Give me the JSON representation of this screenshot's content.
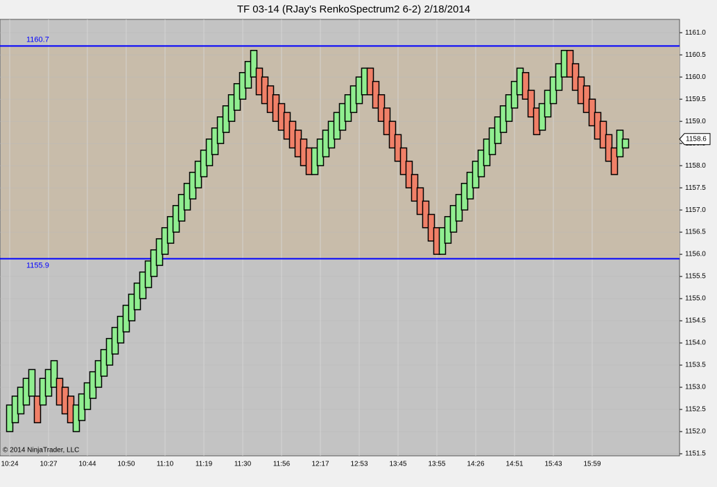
{
  "chart_data": {
    "type": "renko",
    "title": "TF 03-14 (RJay's RenkoSpectrum2  6-2)  2/18/2014",
    "copyright": "© 2014 NinjaTrader, LLC",
    "categories": [
      "10:24",
      null,
      null,
      null,
      null,
      null,
      null,
      "10:27",
      null,
      null,
      null,
      null,
      null,
      null,
      "10:44",
      null,
      null,
      null,
      null,
      null,
      null,
      "10:50",
      null,
      null,
      null,
      null,
      null,
      null,
      "11:10",
      null,
      null,
      null,
      null,
      null,
      null,
      "11:19",
      null,
      null,
      null,
      null,
      null,
      null,
      "11:30",
      null,
      null,
      null,
      null,
      null,
      null,
      "11:56",
      null,
      null,
      null,
      null,
      null,
      null,
      "12:17",
      null,
      null,
      null,
      null,
      null,
      null,
      "12:53",
      null,
      null,
      null,
      null,
      null,
      null,
      "13:45",
      null,
      null,
      null,
      null,
      null,
      null,
      "13:55",
      null,
      null,
      null,
      null,
      null,
      null,
      "14:26",
      null,
      null,
      null,
      null,
      null,
      null,
      "14:51",
      null,
      null,
      null,
      null,
      null,
      null,
      "15:43",
      null,
      null,
      null,
      null,
      null,
      null,
      "15:59",
      null,
      null,
      null,
      null,
      null,
      null
    ],
    "open": [
      1152.0,
      1152.2,
      1152.4,
      1152.6,
      1152.8,
      1152.8,
      1152.6,
      1152.8,
      1153.0,
      1153.2,
      1153.0,
      1152.8,
      1152.0,
      1152.25,
      1152.5,
      1152.75,
      1153.0,
      1153.25,
      1153.5,
      1153.75,
      1154.0,
      1154.25,
      1154.5,
      1154.75,
      1155.0,
      1155.25,
      1155.5,
      1155.75,
      1156.0,
      1156.25,
      1156.5,
      1156.75,
      1157.0,
      1157.25,
      1157.5,
      1157.75,
      1158.0,
      1158.25,
      1158.5,
      1158.75,
      1159.0,
      1159.25,
      1159.5,
      1159.75,
      1160.0,
      1160.2,
      1160.0,
      1159.8,
      1159.6,
      1159.4,
      1159.2,
      1159.0,
      1158.8,
      1158.6,
      1158.4,
      1157.8,
      1158.0,
      1158.2,
      1158.4,
      1158.6,
      1158.8,
      1159.0,
      1159.2,
      1159.4,
      1159.6,
      1160.2,
      1159.9,
      1159.6,
      1159.3,
      1159.0,
      1158.7,
      1158.4,
      1158.1,
      1157.8,
      1157.5,
      1157.2,
      1156.9,
      1156.6,
      1156.0,
      1156.25,
      1156.5,
      1156.75,
      1157.0,
      1157.25,
      1157.5,
      1157.75,
      1158.0,
      1158.25,
      1158.5,
      1158.75,
      1159.0,
      1159.3,
      1159.6,
      1160.1,
      1159.7,
      1159.3,
      1158.8,
      1159.1,
      1159.4,
      1159.7,
      1160.0,
      1160.6,
      1160.3,
      1160.0,
      1159.8,
      1159.5,
      1159.2,
      1159.0,
      1158.7,
      1158.4,
      1158.2,
      1158.4
    ],
    "close": [
      1152.6,
      1152.8,
      1153.0,
      1153.2,
      1153.4,
      1152.2,
      1153.2,
      1153.4,
      1153.6,
      1152.6,
      1152.4,
      1152.2,
      1152.6,
      1152.85,
      1153.1,
      1153.35,
      1153.6,
      1153.85,
      1154.1,
      1154.35,
      1154.6,
      1154.85,
      1155.1,
      1155.35,
      1155.6,
      1155.85,
      1156.1,
      1156.35,
      1156.6,
      1156.85,
      1157.1,
      1157.35,
      1157.6,
      1157.85,
      1158.1,
      1158.35,
      1158.6,
      1158.85,
      1159.1,
      1159.35,
      1159.6,
      1159.85,
      1160.1,
      1160.35,
      1160.6,
      1159.6,
      1159.4,
      1159.2,
      1159.0,
      1158.8,
      1158.6,
      1158.4,
      1158.2,
      1158.0,
      1157.8,
      1158.4,
      1158.6,
      1158.8,
      1159.0,
      1159.2,
      1159.4,
      1159.6,
      1159.8,
      1160.0,
      1160.2,
      1159.6,
      1159.3,
      1159.0,
      1158.7,
      1158.4,
      1158.1,
      1157.8,
      1157.5,
      1157.2,
      1156.9,
      1156.6,
      1156.3,
      1156.0,
      1156.6,
      1156.85,
      1157.1,
      1157.35,
      1157.6,
      1157.85,
      1158.1,
      1158.35,
      1158.6,
      1158.85,
      1159.1,
      1159.35,
      1159.6,
      1159.9,
      1160.2,
      1159.5,
      1159.1,
      1158.7,
      1159.4,
      1159.7,
      1160.0,
      1160.3,
      1160.6,
      1160.0,
      1159.7,
      1159.4,
      1159.2,
      1158.9,
      1158.6,
      1158.4,
      1158.1,
      1157.8,
      1158.8,
      1158.6
    ],
    "up_color": "#90ee90",
    "down_color": "#f08068",
    "ylim": [
      1151.5,
      1161.3
    ],
    "yticks": [
      1151.5,
      {
        "value": 1152,
        "label": "1152.0"
      },
      1152.5,
      {
        "value": 1153,
        "label": "1153.0"
      },
      1153.5,
      {
        "value": 1154,
        "label": "1154.0"
      },
      1154.5,
      {
        "value": 1155,
        "label": "1155.0"
      },
      1155.5,
      {
        "value": 1156,
        "label": "1156.0"
      },
      1156.5,
      {
        "value": 1157,
        "label": "1157.0"
      },
      1157.5,
      {
        "value": 1158,
        "label": "1158.0"
      },
      1158.5,
      {
        "value": 1159,
        "label": "1159.0"
      },
      1159.5,
      {
        "value": 1160,
        "label": "1160.0"
      },
      1160.5,
      {
        "value": 1161,
        "label": "1161.0"
      }
    ],
    "levels": [
      1160.7,
      1155.9
    ],
    "level_color": "#0000ff",
    "band_color": "#c8bcaa",
    "last_price": 1158.6,
    "grid": true
  }
}
